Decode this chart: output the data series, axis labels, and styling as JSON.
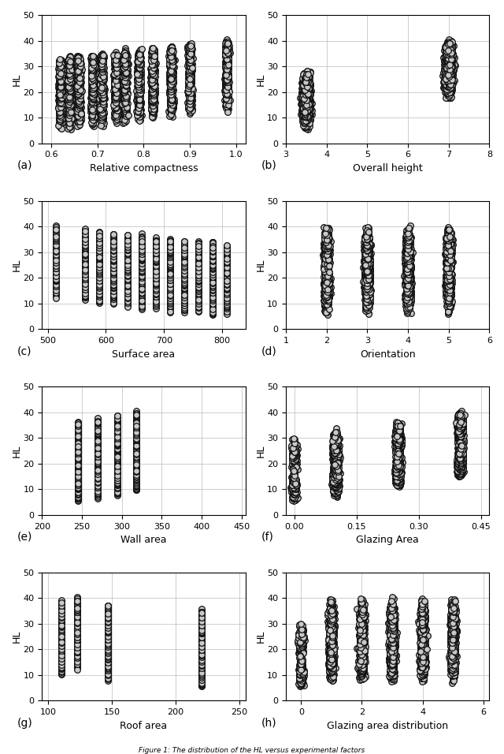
{
  "title": "Figure 1: The distribution of the HL versus experimental factors",
  "subplots": [
    {
      "label": "(a)",
      "xlabel": "Relative compactness",
      "xlim": [
        0.58,
        1.02
      ],
      "xticks": [
        0.6,
        0.7,
        0.8,
        0.9,
        1.0
      ]
    },
    {
      "label": "(b)",
      "xlabel": "Overall height",
      "xlim": [
        3,
        8
      ],
      "xticks": [
        3,
        4,
        5,
        6,
        7,
        8
      ]
    },
    {
      "label": "(c)",
      "xlabel": "Surface area",
      "xlim": [
        490,
        840
      ],
      "xticks": [
        500,
        600,
        700,
        800
      ]
    },
    {
      "label": "(d)",
      "xlabel": "Orientation",
      "xlim": [
        1,
        6
      ],
      "xticks": [
        1,
        2,
        3,
        4,
        5,
        6
      ]
    },
    {
      "label": "(e)",
      "xlabel": "Wall area",
      "xlim": [
        200,
        455
      ],
      "xticks": [
        200,
        250,
        300,
        350,
        400,
        450
      ]
    },
    {
      "label": "(f)",
      "xlabel": "Glazing Area",
      "xlim": [
        -0.02,
        0.47
      ],
      "xticks": [
        0.0,
        0.15,
        0.3,
        0.45
      ]
    },
    {
      "label": "(g)",
      "xlabel": "Roof area",
      "xlim": [
        95,
        255
      ],
      "xticks": [
        100,
        150,
        200,
        250
      ]
    },
    {
      "label": "(h)",
      "xlabel": "Glazing area distribution",
      "xlim": [
        -0.5,
        6.2
      ],
      "xticks": [
        0,
        2,
        4,
        6
      ]
    }
  ],
  "ylim": [
    0,
    50
  ],
  "yticks": [
    0,
    10,
    20,
    30,
    40,
    50
  ],
  "ylabel": "HL",
  "marker_size": 5.5,
  "marker_facecolor": "#c8c8c8",
  "marker_edgecolor": "#111111",
  "marker_linewidth": 0.9,
  "background_color": "#ffffff",
  "grid_color": "#bbbbbb",
  "label_fontsize": 10,
  "tick_fontsize": 8,
  "axis_label_fontsize": 9
}
